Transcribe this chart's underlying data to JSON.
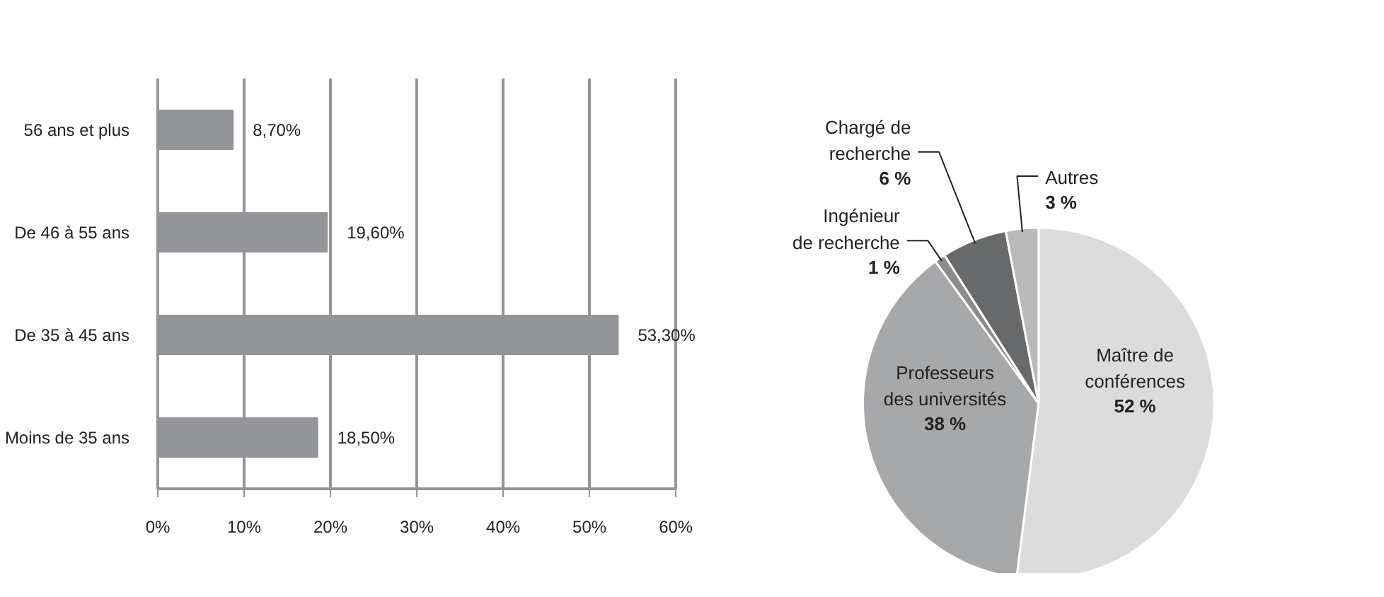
{
  "chart_data": [
    {
      "type": "bar",
      "orientation": "horizontal",
      "categories": [
        "56 ans et plus",
        "De 46 à 55 ans",
        "De 35 à 45 ans",
        "Moins de 35 ans"
      ],
      "values": [
        8.7,
        19.6,
        53.3,
        18.5
      ],
      "color": "#939598",
      "value_labels": [
        "8,70%",
        "19,60%",
        "53,30%",
        "18,50%"
      ],
      "xlim": [
        0,
        60
      ],
      "xticks": [
        {
          "value": 0,
          "label": "0%"
        },
        {
          "value": 10,
          "label": "10%"
        },
        {
          "value": 20,
          "label": "20%"
        },
        {
          "value": 30,
          "label": "30%"
        },
        {
          "value": 40,
          "label": "40%"
        },
        {
          "value": 50,
          "label": "50%"
        },
        {
          "value": 60,
          "label": "60%"
        }
      ],
      "grid": "x"
    },
    {
      "type": "pie",
      "categories": [
        "Maître de conférences",
        "Professeurs des universités",
        "Ingénieur de recherche",
        "Chargé de recherche",
        "Autres"
      ],
      "values": [
        52,
        38,
        1,
        6,
        3
      ],
      "colors": [
        "#dcdcdd",
        "#a7a8aa",
        "#8a8b8d",
        "#68696b",
        "#b9babc"
      ],
      "value_labels": [
        "52 %",
        "38 %",
        "1 %",
        "6 %",
        "3 %"
      ]
    }
  ]
}
